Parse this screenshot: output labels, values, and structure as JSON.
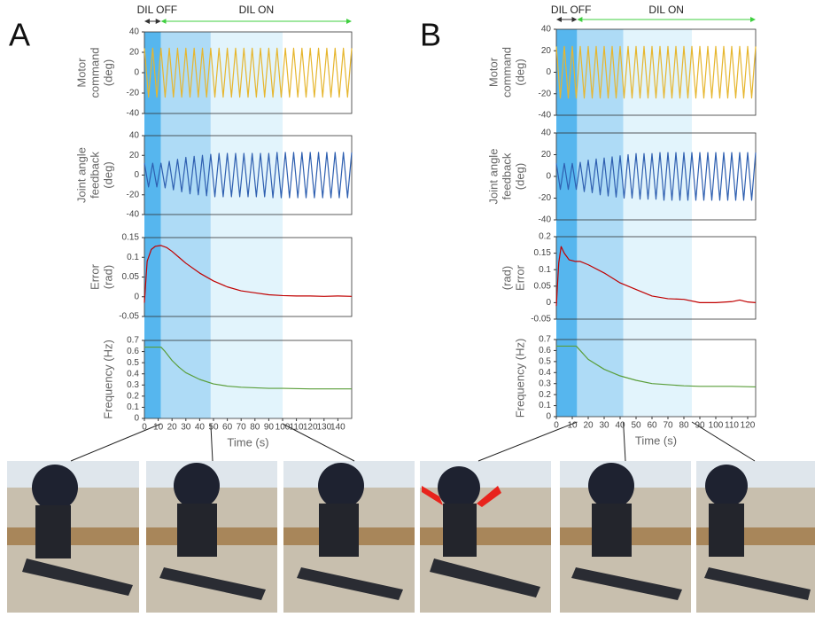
{
  "panels": [
    {
      "label": "A",
      "dil_off": "DIL OFF",
      "dil_on": "DIL ON",
      "phase_bounds": [
        0,
        12,
        48,
        100
      ],
      "phase_colors": [
        "#56b6ee",
        "#aedbf6",
        "#e2f4fc"
      ]
    },
    {
      "label": "B",
      "dil_off": "DIL OFF",
      "dil_on": "DIL ON",
      "phase_bounds": [
        0,
        13,
        42,
        85
      ],
      "phase_colors": [
        "#56b6ee",
        "#aedbf6",
        "#e2f4fc"
      ]
    }
  ],
  "chart_data": [
    {
      "type": "line",
      "ylabel": [
        "Motor",
        "command",
        "(deg)"
      ],
      "xlim": [
        0,
        150
      ],
      "ylim": [
        -40,
        40
      ],
      "yticks": [
        -40,
        -20,
        0,
        20,
        40
      ],
      "color": "#e6b62e",
      "x": [
        0,
        3,
        6,
        9,
        12,
        15,
        18,
        21,
        24,
        27,
        30,
        33,
        36,
        39,
        42,
        45,
        48,
        51,
        54,
        57,
        60,
        63,
        66,
        69,
        72,
        75,
        78,
        81,
        84,
        87,
        90,
        93,
        96,
        99,
        102,
        105,
        108,
        111,
        114,
        117,
        120,
        123,
        126,
        129,
        132,
        135,
        138,
        141,
        144,
        147,
        150
      ],
      "values": [
        24,
        -24,
        24,
        -24,
        24,
        -24,
        24,
        -24,
        24,
        -24,
        24,
        -24,
        24,
        -24,
        24,
        -24,
        24,
        -24,
        24,
        -24,
        24,
        -24,
        24,
        -24,
        24,
        -24,
        24,
        -24,
        24,
        -24,
        24,
        -24,
        24,
        -24,
        24,
        -24,
        24,
        -24,
        24,
        -24,
        24,
        -24,
        24,
        -24,
        24,
        -24,
        24,
        -24,
        24,
        -24,
        24
      ]
    },
    {
      "type": "line",
      "ylabel": [
        "Joint angle",
        "feedback",
        "(deg)"
      ],
      "xlim": [
        0,
        150
      ],
      "ylim": [
        -40,
        40
      ],
      "yticks": [
        -40,
        -20,
        0,
        20,
        40
      ],
      "color": "#2e5fb0",
      "x": [
        0,
        3,
        6,
        9,
        12,
        15,
        18,
        21,
        24,
        27,
        30,
        33,
        36,
        39,
        42,
        45,
        48,
        51,
        54,
        57,
        60,
        63,
        66,
        69,
        72,
        75,
        78,
        81,
        84,
        87,
        90,
        93,
        96,
        99,
        102,
        105,
        108,
        111,
        114,
        117,
        120,
        123,
        126,
        129,
        132,
        135,
        138,
        141,
        144,
        147,
        150
      ],
      "values": [
        12,
        -12,
        12,
        -12,
        12,
        -13,
        14,
        -15,
        16,
        -17,
        18,
        -19,
        19,
        -20,
        20,
        -21,
        21,
        -22,
        22,
        -22,
        22,
        -22,
        22,
        -22,
        22,
        -22,
        22,
        -22,
        22,
        -22,
        22,
        -23,
        23,
        -23,
        23,
        -23,
        23,
        -23,
        23,
        -23,
        23,
        -23,
        23,
        -23,
        23,
        -23,
        23,
        -23,
        23,
        -23,
        23
      ]
    },
    {
      "type": "line",
      "ylabel": [
        "Error",
        "(rad)"
      ],
      "xlim": [
        0,
        150
      ],
      "ylim": [
        -0.05,
        0.15
      ],
      "yticks": [
        -0.05,
        0,
        0.05,
        0.1,
        0.15
      ],
      "color": "#c00000",
      "x": [
        0,
        2,
        5,
        8,
        12,
        16,
        20,
        25,
        30,
        40,
        50,
        60,
        70,
        80,
        90,
        100,
        110,
        120,
        130,
        140,
        150
      ],
      "values": [
        -0.015,
        0.09,
        0.12,
        0.128,
        0.13,
        0.125,
        0.115,
        0.1,
        0.085,
        0.06,
        0.04,
        0.025,
        0.015,
        0.01,
        0.005,
        0.003,
        0.002,
        0.002,
        0.001,
        0.002,
        0.001
      ]
    },
    {
      "type": "line",
      "ylabel": "Frequency (Hz)",
      "xlabel": "Time (s)",
      "xlim": [
        0,
        150
      ],
      "ylim": [
        0,
        0.7
      ],
      "yticks": [
        0,
        0.1,
        0.2,
        0.3,
        0.4,
        0.5,
        0.6,
        0.7
      ],
      "xticks": [
        0,
        10,
        20,
        30,
        40,
        50,
        60,
        70,
        80,
        90,
        100,
        110,
        120,
        130,
        140
      ],
      "color": "#5a9e3a",
      "x": [
        0,
        12,
        15,
        20,
        25,
        30,
        40,
        50,
        60,
        70,
        80,
        90,
        100,
        120,
        140,
        150
      ],
      "values": [
        0.64,
        0.64,
        0.6,
        0.52,
        0.46,
        0.41,
        0.35,
        0.31,
        0.29,
        0.28,
        0.275,
        0.27,
        0.27,
        0.265,
        0.265,
        0.265
      ]
    },
    {
      "type": "line",
      "ylabel": [
        "Motor",
        "command",
        "(deg)"
      ],
      "xlim": [
        0,
        125
      ],
      "ylim": [
        -40,
        40
      ],
      "yticks": [
        -40,
        -20,
        0,
        20,
        40
      ],
      "color": "#e6b62e",
      "x": [
        0,
        2.5,
        5,
        7.5,
        10,
        12.5,
        15,
        17.5,
        20,
        22.5,
        25,
        27.5,
        30,
        32.5,
        35,
        37.5,
        40,
        42.5,
        45,
        47.5,
        50,
        52.5,
        55,
        57.5,
        60,
        62.5,
        65,
        67.5,
        70,
        72.5,
        75,
        77.5,
        80,
        82.5,
        85,
        87.5,
        90,
        92.5,
        95,
        97.5,
        100,
        102.5,
        105,
        107.5,
        110,
        112.5,
        115,
        117.5,
        120,
        122.5,
        125
      ],
      "values": [
        24,
        -24,
        24,
        -24,
        24,
        -24,
        24,
        -24,
        24,
        -24,
        24,
        -24,
        24,
        -24,
        24,
        -24,
        24,
        -24,
        24,
        -24,
        24,
        -24,
        24,
        -24,
        24,
        -24,
        24,
        -24,
        24,
        -24,
        24,
        -24,
        24,
        -24,
        24,
        -24,
        24,
        -24,
        24,
        -24,
        24,
        -24,
        24,
        -24,
        24,
        -24,
        24,
        -24,
        24,
        -24,
        24
      ]
    },
    {
      "type": "line",
      "ylabel": [
        "Joint angle",
        "feedback",
        "(deg)"
      ],
      "xlim": [
        0,
        125
      ],
      "ylim": [
        -40,
        40
      ],
      "yticks": [
        -40,
        -20,
        0,
        20,
        40
      ],
      "color": "#2e5fb0",
      "x": [
        0,
        2.5,
        5,
        7.5,
        10,
        12.5,
        15,
        17.5,
        20,
        22.5,
        25,
        27.5,
        30,
        32.5,
        35,
        37.5,
        40,
        42.5,
        45,
        47.5,
        50,
        52.5,
        55,
        57.5,
        60,
        62.5,
        65,
        67.5,
        70,
        72.5,
        75,
        77.5,
        80,
        82.5,
        85,
        87.5,
        90,
        92.5,
        95,
        97.5,
        100,
        102.5,
        105,
        107.5,
        110,
        112.5,
        115,
        117.5,
        120,
        122.5,
        125
      ],
      "values": [
        12,
        -12,
        12,
        -12,
        12,
        -12,
        13,
        -14,
        15,
        -15,
        16,
        -17,
        17,
        -18,
        18,
        -19,
        19,
        -20,
        20,
        -20,
        21,
        -21,
        21,
        -21,
        21,
        -21,
        22,
        -22,
        22,
        -22,
        22,
        -22,
        22,
        -22,
        22,
        -22,
        22,
        -22,
        22,
        -22,
        22,
        -22,
        22,
        -22,
        22,
        -22,
        22,
        -22,
        22,
        -22,
        22
      ]
    },
    {
      "type": "line",
      "ylabel": [
        "(rad)",
        "Error"
      ],
      "xlim": [
        0,
        125
      ],
      "ylim": [
        -0.05,
        0.2
      ],
      "yticks": [
        -0.05,
        0,
        0.05,
        0.1,
        0.15,
        0.2
      ],
      "color": "#c00000",
      "x": [
        0,
        1.5,
        3,
        5,
        8,
        12,
        15,
        20,
        30,
        40,
        50,
        60,
        70,
        80,
        90,
        100,
        110,
        115,
        120,
        125
      ],
      "values": [
        -0.01,
        0.12,
        0.17,
        0.15,
        0.13,
        0.125,
        0.125,
        0.115,
        0.09,
        0.06,
        0.04,
        0.02,
        0.012,
        0.01,
        0.0,
        0.0,
        0.003,
        0.008,
        0.002,
        0.0
      ]
    },
    {
      "type": "line",
      "ylabel": "Frequency (Hz)",
      "xlabel": "Time (s)",
      "xlim": [
        0,
        125
      ],
      "ylim": [
        0,
        0.7
      ],
      "yticks": [
        0,
        0.1,
        0.2,
        0.3,
        0.4,
        0.5,
        0.6,
        0.7
      ],
      "xticks": [
        0,
        10,
        20,
        30,
        40,
        50,
        60,
        70,
        80,
        90,
        100,
        110,
        120
      ],
      "color": "#5a9e3a",
      "x": [
        0,
        12.5,
        15,
        20,
        30,
        40,
        50,
        60,
        70,
        80,
        90,
        100,
        110,
        125
      ],
      "values": [
        0.64,
        0.64,
        0.6,
        0.52,
        0.43,
        0.37,
        0.33,
        0.3,
        0.29,
        0.28,
        0.275,
        0.275,
        0.275,
        0.27
      ]
    }
  ]
}
